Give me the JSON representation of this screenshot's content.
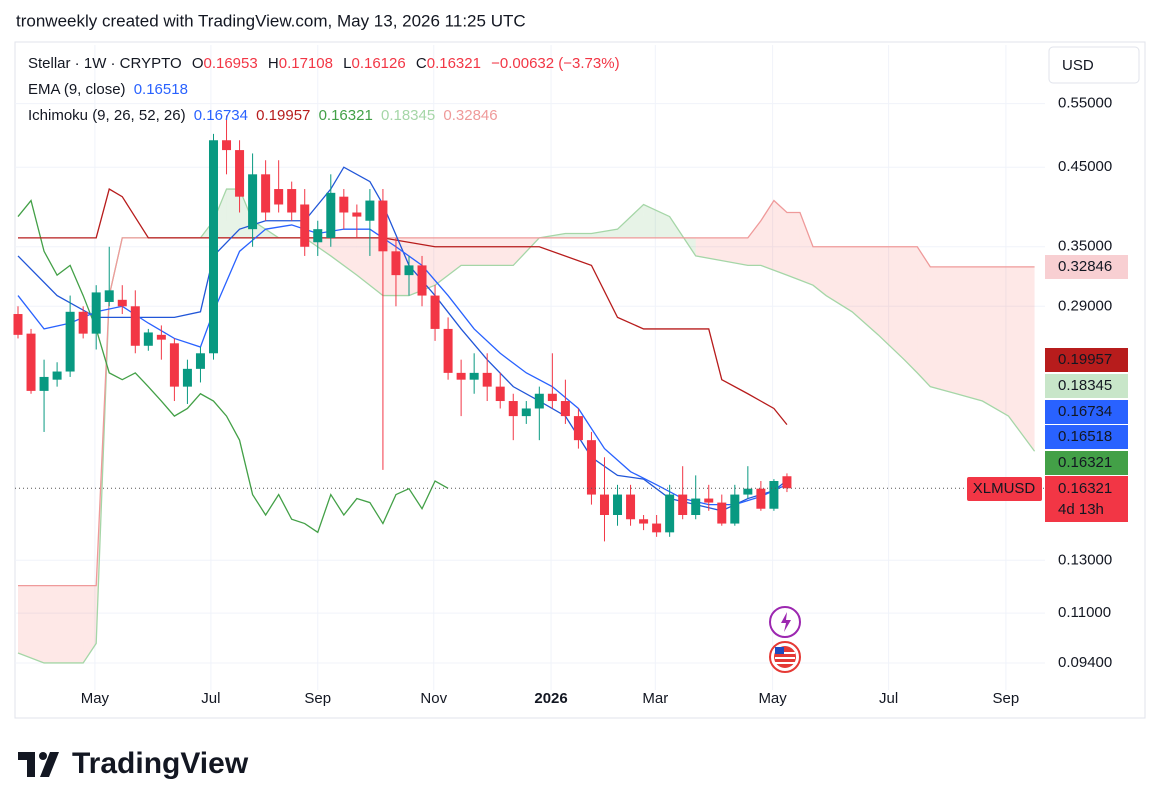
{
  "chart_data": {
    "type": "candlestick",
    "title": "tronweekly created with TradingView.com, May 13, 2026 11:25 UTC",
    "symbol": "Stellar · 1W · CRYPTO",
    "ohlc_labels": [
      "O",
      "H",
      "L",
      "C"
    ],
    "change": "−0.00632 (−3.73%)",
    "ema_label": "EMA (9, close)",
    "ichimoku_label": "Ichimoku (9, 26, 52, 26)",
    "currency": "USD",
    "ticker": "XLMUSD",
    "countdown": "4d 13h",
    "brand": "TradingView",
    "log_scale": true,
    "grid": true,
    "up_color": "#089981",
    "down_color": "#f23645",
    "ylim": [
      0.0863,
      0.662
    ],
    "yticks": [
      {
        "value": 0.55,
        "label": "0.55000"
      },
      {
        "value": 0.45,
        "label": "0.45000"
      },
      {
        "value": 0.35,
        "label": "0.35000"
      },
      {
        "value": 0.29,
        "label": "0.29000"
      },
      {
        "value": 0.13,
        "label": "0.13000"
      },
      {
        "value": 0.11,
        "label": "0.11000"
      },
      {
        "value": 0.094,
        "label": "0.09400"
      }
    ],
    "xlim": [
      -0.23,
      78.8
    ],
    "xticks": [
      {
        "value": 5.9,
        "label": "May"
      },
      {
        "value": 14.8,
        "label": "Jul"
      },
      {
        "value": 23.0,
        "label": "Sep"
      },
      {
        "value": 31.9,
        "label": "Nov"
      },
      {
        "value": 40.9,
        "label": "2026"
      },
      {
        "value": 48.9,
        "label": "Mar"
      },
      {
        "value": 57.9,
        "label": "May"
      },
      {
        "value": 66.8,
        "label": "Jul"
      },
      {
        "value": 75.8,
        "label": "Sep"
      }
    ],
    "candles": {
      "x": [
        0,
        1,
        2,
        3,
        4,
        5,
        6,
        7,
        8,
        9,
        10,
        11,
        12,
        13,
        14,
        15,
        16,
        17,
        18,
        19,
        20,
        21,
        22,
        23,
        24,
        25,
        26,
        27,
        28,
        29,
        30,
        31,
        32,
        33,
        34,
        35,
        36,
        37,
        38,
        39,
        40,
        41,
        42,
        43,
        44,
        45,
        46,
        47,
        48,
        49,
        50,
        51,
        52,
        53,
        54,
        55,
        56,
        57,
        58,
        59
      ],
      "open": [
        0.283,
        0.266,
        0.222,
        0.23,
        0.236,
        0.285,
        0.266,
        0.294,
        0.296,
        0.29,
        0.256,
        0.265,
        0.258,
        0.225,
        0.238,
        0.25,
        0.49,
        0.475,
        0.37,
        0.44,
        0.42,
        0.42,
        0.4,
        0.355,
        0.36,
        0.41,
        0.39,
        0.38,
        0.405,
        0.345,
        0.32,
        0.33,
        0.3,
        0.27,
        0.235,
        0.23,
        0.235,
        0.225,
        0.215,
        0.205,
        0.21,
        0.22,
        0.215,
        0.205,
        0.19,
        0.16,
        0.15,
        0.16,
        0.148,
        0.146,
        0.142,
        0.16,
        0.15,
        0.158,
        0.156,
        0.146,
        0.16,
        0.163,
        0.153,
        0.16953
      ],
      "high": [
        0.29,
        0.27,
        0.245,
        0.243,
        0.3,
        0.29,
        0.31,
        0.35,
        0.31,
        0.305,
        0.27,
        0.273,
        0.262,
        0.245,
        0.255,
        0.5,
        0.53,
        0.49,
        0.47,
        0.46,
        0.46,
        0.43,
        0.42,
        0.38,
        0.44,
        0.42,
        0.4,
        0.42,
        0.42,
        0.36,
        0.34,
        0.34,
        0.31,
        0.28,
        0.245,
        0.25,
        0.25,
        0.235,
        0.22,
        0.215,
        0.225,
        0.25,
        0.23,
        0.21,
        0.195,
        0.18,
        0.165,
        0.165,
        0.15,
        0.15,
        0.165,
        0.175,
        0.17,
        0.165,
        0.16,
        0.165,
        0.175,
        0.167,
        0.168,
        0.17108
      ],
      "low": [
        0.262,
        0.22,
        0.195,
        0.225,
        0.232,
        0.262,
        0.253,
        0.29,
        0.283,
        0.25,
        0.252,
        0.245,
        0.215,
        0.213,
        0.228,
        0.245,
        0.44,
        0.39,
        0.35,
        0.38,
        0.39,
        0.38,
        0.34,
        0.34,
        0.35,
        0.37,
        0.36,
        0.34,
        0.173,
        0.29,
        0.3,
        0.29,
        0.26,
        0.23,
        0.205,
        0.22,
        0.215,
        0.21,
        0.19,
        0.2,
        0.19,
        0.21,
        0.2,
        0.185,
        0.155,
        0.138,
        0.145,
        0.145,
        0.143,
        0.14,
        0.14,
        0.148,
        0.148,
        0.152,
        0.145,
        0.145,
        0.158,
        0.152,
        0.152,
        0.16126
      ],
      "close": [
        0.265,
        0.222,
        0.232,
        0.236,
        0.285,
        0.266,
        0.303,
        0.305,
        0.29,
        0.256,
        0.267,
        0.261,
        0.225,
        0.238,
        0.25,
        0.49,
        0.475,
        0.41,
        0.44,
        0.39,
        0.4,
        0.39,
        0.35,
        0.37,
        0.415,
        0.39,
        0.385,
        0.405,
        0.345,
        0.32,
        0.33,
        0.3,
        0.27,
        0.235,
        0.23,
        0.235,
        0.225,
        0.215,
        0.205,
        0.21,
        0.22,
        0.215,
        0.205,
        0.19,
        0.16,
        0.15,
        0.16,
        0.148,
        0.146,
        0.142,
        0.16,
        0.15,
        0.158,
        0.156,
        0.146,
        0.16,
        0.163,
        0.153,
        0.167,
        0.16321
      ]
    },
    "ema": {
      "color": "#2962ff",
      "x": [
        0,
        2,
        4,
        6,
        8,
        10,
        12,
        14,
        15,
        17,
        19,
        21,
        23,
        25,
        27,
        29,
        31,
        33,
        35,
        37,
        39,
        41,
        43,
        45,
        47,
        49,
        51,
        53,
        55,
        57,
        59
      ],
      "values": [
        0.3,
        0.27,
        0.275,
        0.285,
        0.29,
        0.275,
        0.262,
        0.255,
        0.285,
        0.345,
        0.37,
        0.375,
        0.365,
        0.37,
        0.37,
        0.35,
        0.33,
        0.3,
        0.27,
        0.25,
        0.235,
        0.225,
        0.21,
        0.185,
        0.172,
        0.165,
        0.158,
        0.155,
        0.155,
        0.159,
        0.16518
      ]
    },
    "conversion": {
      "color": "#2156d8",
      "x": [
        0,
        3,
        6,
        9,
        12,
        14,
        15,
        17,
        19,
        22,
        24,
        25,
        27,
        28,
        30,
        32,
        34,
        36,
        38,
        40,
        42,
        44,
        46,
        48,
        50,
        52,
        54,
        56,
        58,
        59
      ],
      "values": [
        0.34,
        0.3,
        0.28,
        0.28,
        0.28,
        0.285,
        0.34,
        0.37,
        0.38,
        0.38,
        0.42,
        0.45,
        0.43,
        0.4,
        0.33,
        0.3,
        0.27,
        0.245,
        0.225,
        0.215,
        0.205,
        0.18,
        0.17,
        0.168,
        0.158,
        0.155,
        0.152,
        0.158,
        0.162,
        0.16734
      ]
    },
    "base": {
      "color": "#b71c1c",
      "x": [
        0,
        6,
        7,
        8,
        10,
        16,
        20,
        24,
        28,
        32,
        40,
        44,
        46,
        48,
        53,
        54,
        56,
        58,
        59
      ],
      "values": [
        0.36,
        0.36,
        0.42,
        0.41,
        0.36,
        0.36,
        0.36,
        0.36,
        0.36,
        0.35,
        0.35,
        0.33,
        0.28,
        0.27,
        0.27,
        0.23,
        0.22,
        0.21,
        0.19957
      ]
    },
    "lagging": {
      "color": "#43a047",
      "x": [
        0,
        1,
        2,
        3,
        4,
        5,
        6,
        7,
        8,
        9,
        10,
        11,
        12,
        13,
        14,
        15,
        16,
        17,
        18,
        19,
        20,
        21,
        22,
        23,
        24,
        25,
        26,
        27,
        28,
        29,
        30,
        31,
        32,
        33
      ],
      "values": [
        0.385,
        0.405,
        0.345,
        0.32,
        0.33,
        0.3,
        0.27,
        0.235,
        0.23,
        0.235,
        0.225,
        0.215,
        0.205,
        0.21,
        0.22,
        0.215,
        0.205,
        0.19,
        0.16,
        0.15,
        0.16,
        0.148,
        0.146,
        0.142,
        0.16,
        0.15,
        0.158,
        0.156,
        0.146,
        0.16,
        0.163,
        0.153,
        0.167,
        0.16321
      ]
    },
    "cloud": {
      "x": [
        0,
        2,
        5,
        6,
        7,
        8,
        10,
        12,
        14,
        15,
        16,
        17,
        18,
        20,
        22,
        24,
        26,
        28,
        30,
        32,
        34,
        36,
        38,
        40,
        42,
        44,
        46,
        48,
        50,
        52,
        54,
        56,
        57,
        58,
        59,
        60,
        61,
        62,
        64,
        66,
        68,
        69,
        70,
        72,
        74,
        76,
        78
      ],
      "span_a": {
        "color": "#a5d6a7",
        "values": [
          0.097,
          0.094,
          0.094,
          0.1,
          0.3,
          0.36,
          0.36,
          0.36,
          0.36,
          0.38,
          0.42,
          0.42,
          0.38,
          0.36,
          0.36,
          0.34,
          0.32,
          0.3,
          0.3,
          0.31,
          0.33,
          0.33,
          0.33,
          0.36,
          0.365,
          0.365,
          0.37,
          0.4,
          0.385,
          0.34,
          0.335,
          0.33,
          0.33,
          0.325,
          0.32,
          0.315,
          0.31,
          0.3,
          0.285,
          0.265,
          0.245,
          0.235,
          0.225,
          0.22,
          0.215,
          0.205,
          0.18345
        ]
      },
      "span_b": {
        "color": "#ef9a9a",
        "values": [
          0.12,
          0.12,
          0.12,
          0.12,
          0.3,
          0.36,
          0.36,
          0.36,
          0.36,
          0.36,
          0.36,
          0.36,
          0.36,
          0.36,
          0.36,
          0.36,
          0.36,
          0.36,
          0.36,
          0.36,
          0.36,
          0.36,
          0.36,
          0.36,
          0.36,
          0.36,
          0.36,
          0.36,
          0.36,
          0.36,
          0.36,
          0.36,
          0.38,
          0.405,
          0.39,
          0.39,
          0.35,
          0.35,
          0.35,
          0.35,
          0.35,
          0.35,
          0.32846,
          0.32846,
          0.32846,
          0.32846,
          0.32846
        ]
      }
    }
  }
}
